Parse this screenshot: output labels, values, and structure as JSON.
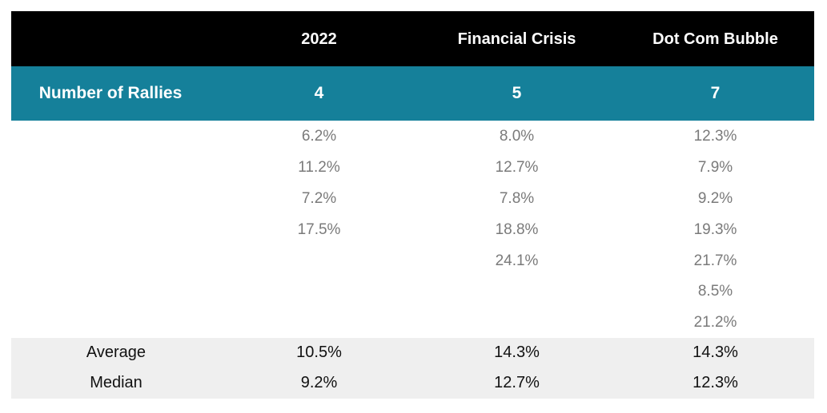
{
  "chart_data": {
    "type": "table",
    "columns": [
      "",
      "2022",
      "Financial Crisis",
      "Dot Com Bubble"
    ],
    "number_of_rallies": {
      "label": "Number of Rallies",
      "values": [
        "4",
        "5",
        "7"
      ]
    },
    "rallies": [
      [
        "6.2%",
        "8.0%",
        "12.3%"
      ],
      [
        "11.2%",
        "12.7%",
        "7.9%"
      ],
      [
        "7.2%",
        "7.8%",
        "9.2%"
      ],
      [
        "17.5%",
        "18.8%",
        "19.3%"
      ],
      [
        "",
        "24.1%",
        "21.7%"
      ],
      [
        "",
        "",
        "8.5%"
      ],
      [
        "",
        "",
        "21.2%"
      ]
    ],
    "summary": [
      {
        "label": "Average",
        "values": [
          "10.5%",
          "14.3%",
          "14.3%"
        ]
      },
      {
        "label": "Median",
        "values": [
          "9.2%",
          "12.7%",
          "12.3%"
        ]
      }
    ]
  },
  "colors": {
    "header_bg": "#000000",
    "rallies_bg": "#15809a",
    "summary_bg": "#efefef",
    "data_text": "#7a7a7a"
  }
}
